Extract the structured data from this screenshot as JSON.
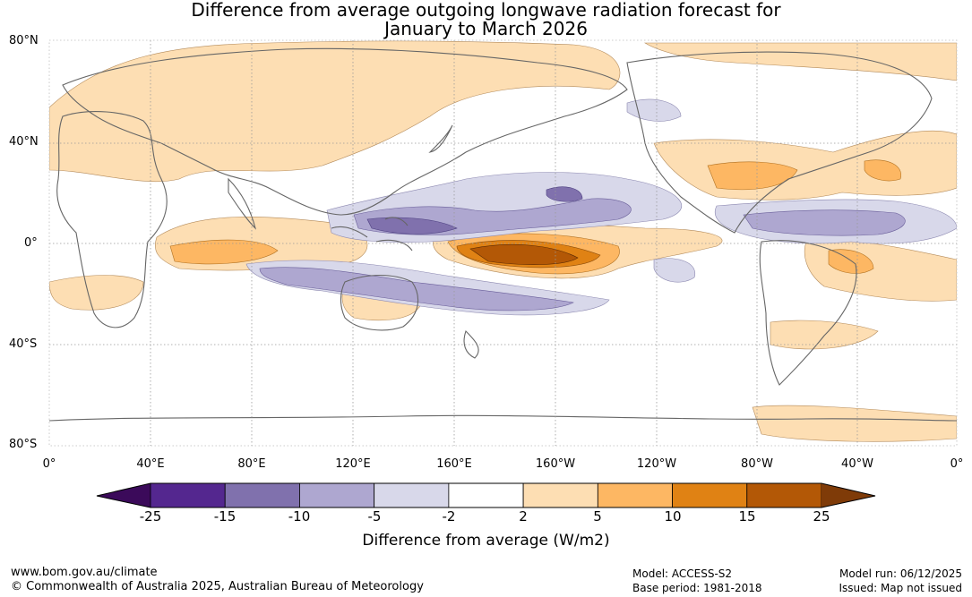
{
  "title": {
    "line1": "Difference from average outgoing longwave radiation forecast for",
    "line2": "January to March 2026"
  },
  "map": {
    "lat_labels": [
      "80°N",
      "40°N",
      "0°",
      "40°S",
      "80°S"
    ],
    "lon_labels": [
      "0°",
      "40°E",
      "80°E",
      "120°E",
      "160°E",
      "160°W",
      "120°W",
      "80°W",
      "40°W",
      "0°"
    ],
    "coastline_color": "#666666",
    "grid_color": "#999999"
  },
  "colorbar": {
    "title": "Difference from average (W/m2)",
    "labels": [
      "-25",
      "-15",
      "-10",
      "-5",
      "-2",
      "2",
      "5",
      "10",
      "15",
      "25"
    ],
    "colors": [
      "#3b0a5a",
      "#54278f",
      "#8071ad",
      "#aea7d0",
      "#d8d8ea",
      "#ffffff",
      "#fddeb3",
      "#fdb763",
      "#e08214",
      "#b35806",
      "#7f3b08"
    ]
  },
  "footer": {
    "url": "www.bom.gov.au/climate",
    "copyright": "© Commonwealth of Australia 2025, Australian Bureau of Meteorology",
    "model": "Model: ACCESS-S2",
    "base_period": "Base period: 1981-2018",
    "model_run": "Model run: 06/12/2025",
    "issued": "Issued: Map not issued"
  }
}
